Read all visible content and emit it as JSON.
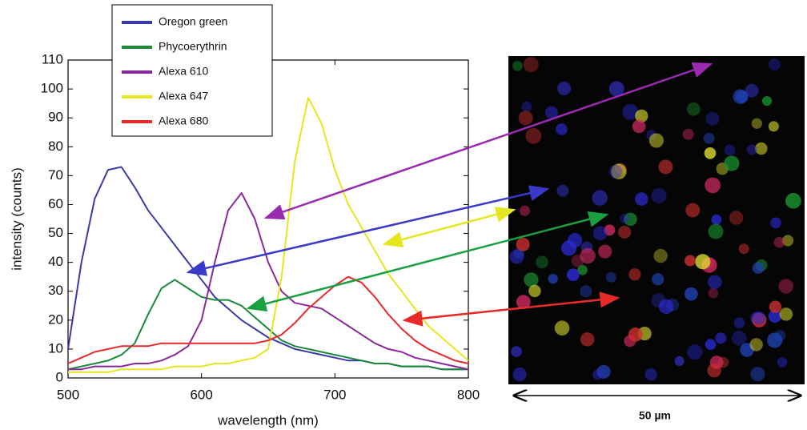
{
  "chart_data": {
    "type": "line",
    "x": [
      500,
      510,
      520,
      530,
      540,
      550,
      560,
      570,
      580,
      590,
      600,
      610,
      620,
      630,
      640,
      650,
      660,
      670,
      680,
      690,
      700,
      710,
      720,
      730,
      740,
      750,
      760,
      770,
      780,
      790,
      800
    ],
    "series": [
      {
        "name": "Oregon green",
        "color": "#3a3aa8",
        "values": [
          10,
          40,
          62,
          72,
          73,
          66,
          58,
          52,
          46,
          40,
          34,
          28,
          24,
          20,
          17,
          14,
          12,
          10,
          9,
          8,
          7,
          6,
          6,
          5,
          5,
          4,
          4,
          4,
          3,
          3,
          3
        ]
      },
      {
        "name": "Phycoerythrin",
        "color": "#1a8a3a",
        "values": [
          3,
          4,
          5,
          6,
          8,
          12,
          22,
          31,
          34,
          31,
          28,
          27,
          27,
          25,
          21,
          17,
          13,
          11,
          10,
          9,
          8,
          7,
          6,
          5,
          5,
          4,
          4,
          4,
          3,
          3,
          3
        ]
      },
      {
        "name": "Alexa 610",
        "color": "#8a2a9a",
        "values": [
          3,
          3,
          4,
          4,
          4,
          5,
          5,
          6,
          8,
          11,
          20,
          40,
          58,
          64,
          55,
          40,
          30,
          26,
          25,
          24,
          21,
          18,
          15,
          12,
          10,
          9,
          7,
          6,
          5,
          4,
          3
        ]
      },
      {
        "name": "Alexa 647",
        "color": "#e6e620",
        "values": [
          2,
          2,
          2,
          2,
          3,
          3,
          3,
          3,
          4,
          4,
          4,
          5,
          5,
          6,
          7,
          10,
          35,
          75,
          97,
          88,
          72,
          60,
          52,
          44,
          36,
          30,
          24,
          18,
          14,
          10,
          6
        ]
      },
      {
        "name": "Alexa 680",
        "color": "#e82a2a",
        "values": [
          5,
          7,
          9,
          10,
          11,
          11,
          11,
          12,
          12,
          12,
          12,
          12,
          12,
          12,
          12,
          13,
          15,
          19,
          24,
          28,
          32,
          35,
          33,
          28,
          22,
          17,
          13,
          10,
          8,
          6,
          5
        ]
      }
    ],
    "x_label": "wavelength (nm)",
    "y_label": "intensity (counts)",
    "xlim": [
      500,
      800
    ],
    "xticks": [
      500,
      600,
      700,
      800
    ],
    "ylim": [
      0,
      110
    ],
    "yticks": [
      0,
      10,
      20,
      30,
      40,
      50,
      60,
      70,
      80,
      90,
      100,
      110
    ]
  },
  "image": {
    "scale_label": "50 µm"
  }
}
